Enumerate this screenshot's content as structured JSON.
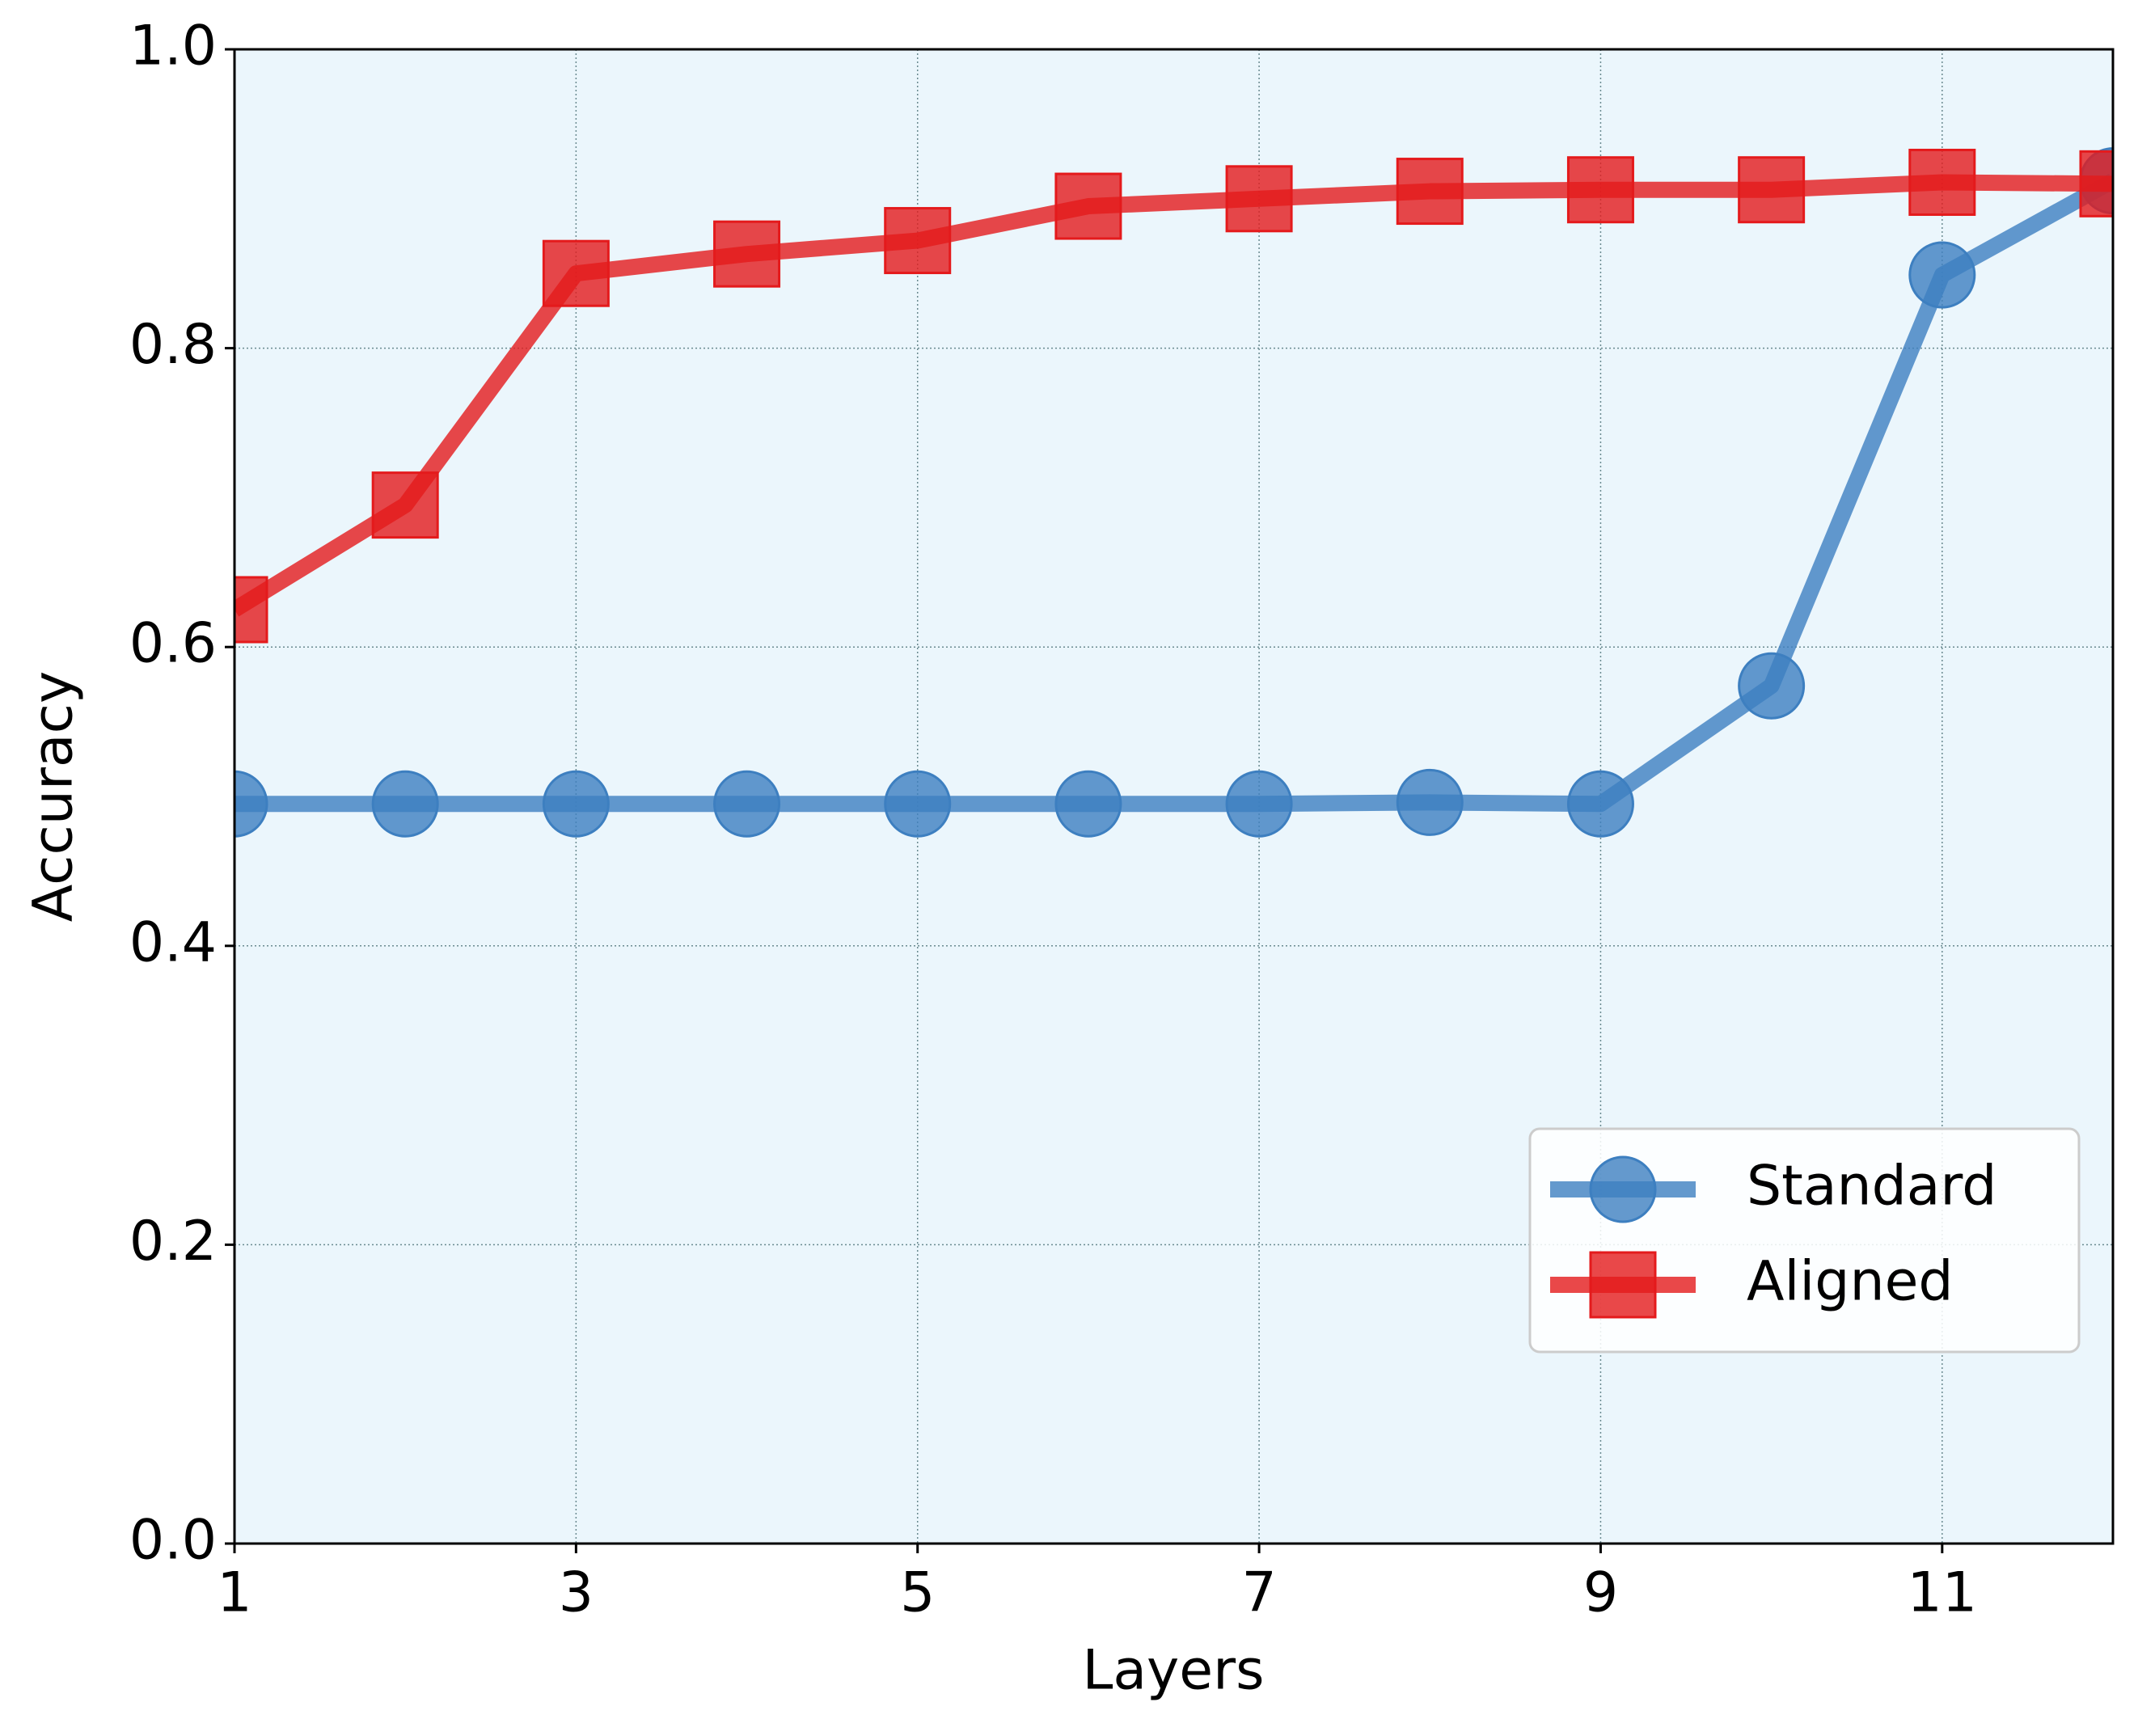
{
  "chart_data": {
    "type": "line",
    "x_label": "Layers",
    "y_label": "Accuracy",
    "x": [
      1,
      2,
      3,
      4,
      5,
      6,
      7,
      8,
      9,
      10,
      11,
      12
    ],
    "series": [
      {
        "name": "Standard",
        "color": "#3d7fc0",
        "marker": "circle",
        "values": [
          0.495,
          0.495,
          0.495,
          0.495,
          0.495,
          0.495,
          0.495,
          0.496,
          0.495,
          0.574,
          0.849,
          0.912
        ]
      },
      {
        "name": "Aligned",
        "color": "#e41a1c",
        "marker": "square",
        "values": [
          0.625,
          0.695,
          0.85,
          0.863,
          0.872,
          0.895,
          0.9,
          0.905,
          0.906,
          0.906,
          0.911,
          0.91
        ]
      }
    ],
    "xlim": [
      1,
      12
    ],
    "xticks": [
      1,
      3,
      5,
      7,
      9,
      11
    ],
    "ylim": [
      0,
      1
    ],
    "yticks": [
      {
        "value": 0,
        "label": "0.0"
      },
      0.2,
      0.4,
      0.6,
      0.8,
      {
        "value": 1,
        "label": "1.0"
      }
    ],
    "grid": true,
    "legend": "lower right"
  }
}
